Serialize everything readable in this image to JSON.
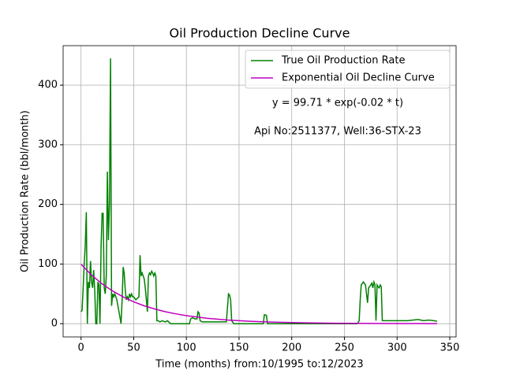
{
  "chart_data": {
    "type": "line",
    "title": "Oil Production Decline Curve",
    "x_label": "Time (months) from:10/1995 to:12/2023",
    "y_label": "Oil Production Rate (bbl/month)",
    "annotations": [
      "y = 99.71 * exp(-0.02 * t)",
      "Api No:2511377, Well:36-STX-23"
    ],
    "xlim": [
      -17,
      356
    ],
    "ylim": [
      -22.2,
      466.2
    ],
    "xticks": [
      0,
      50,
      100,
      150,
      200,
      250,
      300,
      350
    ],
    "yticks": [
      0,
      100,
      200,
      300,
      400
    ],
    "grid": true,
    "legend": "upper right",
    "series": [
      {
        "name": "True Oil Production Rate",
        "color": "#008000",
        "x": [
          0,
          1,
          2,
          3,
          4,
          5,
          6,
          7,
          8,
          9,
          10,
          11,
          12,
          13,
          14,
          15,
          16,
          17,
          18,
          19,
          20,
          21,
          22,
          23,
          24,
          25,
          26,
          27,
          28,
          29,
          30,
          31,
          32,
          33,
          34,
          35,
          36,
          37,
          38,
          39,
          40,
          41,
          42,
          43,
          44,
          45,
          46,
          47,
          48,
          49,
          50,
          52,
          55,
          56,
          57,
          58,
          59,
          60,
          61,
          62,
          63,
          64,
          65,
          66,
          67,
          68,
          69,
          70,
          71,
          72,
          73,
          75,
          77,
          80,
          82,
          85,
          100,
          103,
          104,
          106,
          108,
          110,
          111,
          112,
          113,
          115,
          120,
          130,
          138,
          140,
          141,
          142,
          143,
          145,
          160,
          173,
          174,
          176,
          177,
          200,
          230,
          250,
          262,
          263,
          264,
          265,
          266,
          268,
          270,
          272,
          273,
          275,
          276,
          277,
          278,
          279,
          280,
          281,
          282,
          283,
          284,
          285,
          286,
          290,
          300,
          310,
          320,
          325,
          330,
          335,
          338
        ],
        "values": [
          20,
          22,
          60,
          100,
          130,
          187,
          0,
          70,
          60,
          105,
          70,
          60,
          90,
          55,
          0,
          0,
          70,
          65,
          0,
          130,
          185,
          185,
          60,
          50,
          80,
          255,
          140,
          200,
          445,
          30,
          50,
          45,
          50,
          45,
          40,
          30,
          20,
          10,
          0,
          40,
          95,
          85,
          55,
          40,
          45,
          40,
          50,
          45,
          50,
          45,
          45,
          40,
          45,
          115,
          80,
          85,
          80,
          75,
          60,
          40,
          20,
          80,
          85,
          82,
          88,
          85,
          80,
          85,
          80,
          5,
          5,
          3,
          5,
          3,
          5,
          0,
          0,
          0,
          8,
          10,
          8,
          8,
          20,
          18,
          5,
          3,
          3,
          3,
          3,
          50,
          48,
          40,
          5,
          0,
          0,
          0,
          15,
          14,
          0,
          0,
          0,
          0,
          0,
          2,
          5,
          40,
          65,
          70,
          65,
          35,
          60,
          65,
          68,
          60,
          70,
          65,
          5,
          65,
          62,
          60,
          65,
          62,
          5,
          5,
          5,
          5,
          7,
          5,
          6,
          5,
          4
        ]
      },
      {
        "name": "Exponential Oil Decline Curve",
        "color": "#bf00bf",
        "x": [
          0,
          10,
          20,
          30,
          40,
          50,
          60,
          70,
          80,
          90,
          100,
          120,
          140,
          160,
          180,
          200,
          240,
          280,
          320,
          338
        ],
        "values": [
          99.71,
          81.6,
          66.8,
          54.7,
          44.8,
          36.7,
          30.0,
          24.6,
          20.1,
          16.5,
          13.5,
          9.0,
          6.1,
          4.1,
          2.7,
          1.8,
          0.8,
          0.4,
          0.2,
          0.1
        ]
      }
    ]
  }
}
